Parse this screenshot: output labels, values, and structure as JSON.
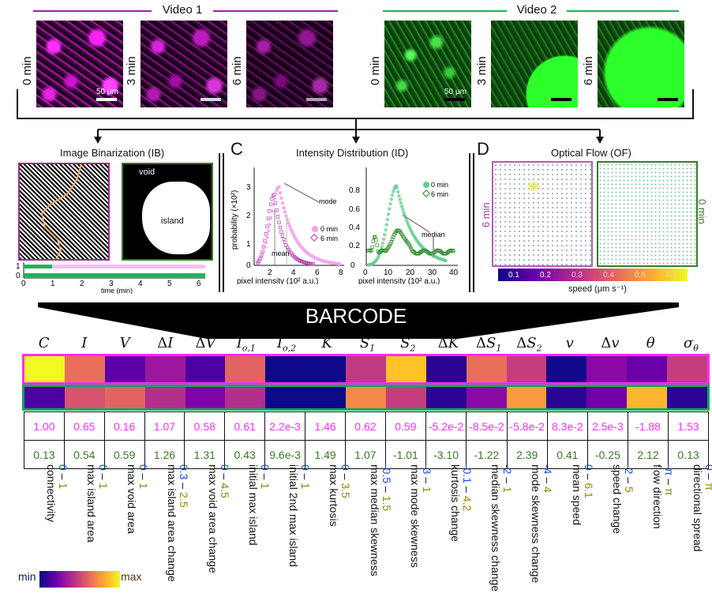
{
  "videos": [
    {
      "title": "Video 1",
      "color": "#a020a0",
      "frames": [
        "0 min",
        "3 min",
        "6 min"
      ],
      "scale_label": "50 μm"
    },
    {
      "title": "Video 2",
      "color": "#20b050",
      "frames": [
        "0 min",
        "3 min",
        "6 min"
      ],
      "scale_label": "50 μm"
    }
  ],
  "panels": {
    "ib": {
      "title": "Image Binarization (IB)",
      "void_label": "void",
      "island_label": "island",
      "timeline": {
        "y_ticks": [
          "1",
          "0"
        ],
        "x_ticks": [
          "0",
          "1",
          "2",
          "3",
          "4",
          "5",
          "6"
        ],
        "xlabel": "time (min)"
      }
    },
    "id": {
      "letter": "C",
      "title": "Intensity Distribution (ID)",
      "left_plot": {
        "ylabel": "probability (×10²)",
        "xlabel": "pixel intensity (10² a.u.)",
        "y_ticks": [
          "0",
          "1",
          "2",
          "3"
        ],
        "x_ticks": [
          "2",
          "4",
          "6",
          "8"
        ],
        "legend": [
          "0 min",
          "6 min"
        ],
        "annotations": [
          "mode",
          "mean"
        ]
      },
      "right_plot": {
        "xlabel": "pixel intensity (10² a.u.)",
        "y_ticks": [
          "0",
          "0.2",
          "0.4",
          "0.6",
          "0.8"
        ],
        "x_ticks": [
          "0",
          "10",
          "20",
          "30",
          "40"
        ],
        "legend": [
          "0 min",
          "6 min"
        ],
        "annotations": [
          "median"
        ]
      }
    },
    "of": {
      "letter": "D",
      "title": "Optical Flow (OF)",
      "left_label": "6 min",
      "right_label": "0 min",
      "colorbar_ticks": [
        "0.1",
        "0.2",
        "0.3",
        "0.4",
        "0.5",
        "0.6"
      ],
      "colorbar_label": "speed (μm s⁻¹)"
    }
  },
  "barcode": {
    "title": "BARCODE",
    "columns": [
      {
        "symbol": "C",
        "sub": "",
        "prefix": "",
        "name": "connectivity",
        "lo": "0",
        "hi": "1",
        "v1": "1.00",
        "v2": "0.13",
        "c1": "#f0f921",
        "c2": "#4c02a1"
      },
      {
        "symbol": "I",
        "sub": "",
        "prefix": "",
        "name": "max island area",
        "lo": "0",
        "hi": "1",
        "v1": "0.65",
        "v2": "0.54",
        "c1": "#e8705a",
        "c2": "#d5546e"
      },
      {
        "symbol": "V",
        "sub": "",
        "prefix": "",
        "name": "max void area",
        "lo": "0",
        "hi": "1",
        "v1": "0.16",
        "v2": "0.59",
        "c1": "#5c01a6",
        "c2": "#e16462"
      },
      {
        "symbol": "I",
        "sub": "",
        "prefix": "Δ",
        "name": "max island area change",
        "lo": "0.3",
        "hi": "2.5",
        "v1": "1.07",
        "v2": "1.26",
        "c1": "#9c179e",
        "c2": "#b42e8d"
      },
      {
        "symbol": "V",
        "sub": "",
        "prefix": "Δ",
        "name": "max void area change",
        "lo": "0",
        "hi": "4.5",
        "v1": "0.58",
        "v2": "1.31",
        "c1": "#4c02a1",
        "c2": "#7e03a8"
      },
      {
        "symbol": "I",
        "sub": "o,1",
        "prefix": "",
        "name": "initial max island",
        "lo": "0",
        "hi": "1",
        "v1": "0.61",
        "v2": "0.43",
        "c1": "#e16462",
        "c2": "#b42e8d"
      },
      {
        "symbol": "I",
        "sub": "o,2",
        "prefix": "",
        "name": "initial 2nd max island",
        "lo": "0",
        "hi": "1",
        "v1": "2.2e-3",
        "v2": "9.6e-3",
        "c1": "#0d0887",
        "c2": "#0d0887"
      },
      {
        "symbol": "K",
        "sub": "",
        "prefix": "",
        "name": "max kurtosis",
        "lo": "0",
        "hi": "3.5",
        "v1": "1.46",
        "v2": "1.49",
        "c1": "#0d0887",
        "c2": "#0d0887"
      },
      {
        "symbol": "S",
        "sub": "1",
        "prefix": "",
        "name": "max median skewness",
        "lo": "-0.5",
        "hi": "1.5",
        "v1": "0.62",
        "v2": "1.07",
        "c1": "#c03a83",
        "c2": "#f48849"
      },
      {
        "symbol": "S",
        "sub": "2",
        "prefix": "",
        "name": "max mode skewness",
        "lo": "-3",
        "hi": "1",
        "v1": "0.59",
        "v2": "-1.01",
        "c1": "#fdc328",
        "c2": "#c43e7f"
      },
      {
        "symbol": "K",
        "sub": "",
        "prefix": "Δ",
        "name": "kurtosis change",
        "lo": "-0.1",
        "hi": "4.2",
        "v1": "-5.2e-2",
        "v2": "-3.10",
        "c1": "#2a0593",
        "c2": "#2a0593"
      },
      {
        "symbol": "S",
        "sub": "1",
        "prefix": "Δ",
        "name": "median skewness change",
        "lo": "-2",
        "hi": "1",
        "v1": "-8.5e-2",
        "v2": "-1.22",
        "c1": "#e8705a",
        "c2": "#8b0aa5"
      },
      {
        "symbol": "S",
        "sub": "2",
        "prefix": "Δ",
        "name": "mode skewness change",
        "lo": "-4",
        "hi": "4",
        "v1": "-5.8e-2",
        "v2": "2.39",
        "c1": "#c43e7f",
        "c2": "#f99a3e"
      },
      {
        "symbol": "v",
        "sub": "",
        "prefix": "",
        "name": "mean speed",
        "lo": "0",
        "hi": "6.1",
        "v1": "8.3e-2",
        "v2": "0.41",
        "c1": "#120a8b",
        "c2": "#2a0593"
      },
      {
        "symbol": "v",
        "sub": "",
        "prefix": "Δ",
        "name": "speed change",
        "lo": "-2",
        "hi": "5",
        "v1": "2.5e-3",
        "v2": "-0.25",
        "c1": "#8b0aa5",
        "c2": "#7201a8"
      },
      {
        "symbol": "θ",
        "sub": "",
        "prefix": "",
        "name": "flow direction",
        "lo": "-π",
        "hi": "π",
        "v1": "-1.88",
        "v2": "2.12",
        "c1": "#6a00a8",
        "c2": "#fdb42f"
      },
      {
        "symbol": "σ",
        "sub": "θ",
        "prefix": "",
        "name": "directional spread",
        "lo": "0",
        "hi": "π",
        "v1": "1.53",
        "v2": "0.13",
        "c1": "#c43e7f",
        "c2": "#2a0593"
      }
    ],
    "row1_border": "#ff2cff",
    "row2_border": "#10a850"
  },
  "colormap": {
    "min_label": "min",
    "max_label": "max"
  }
}
